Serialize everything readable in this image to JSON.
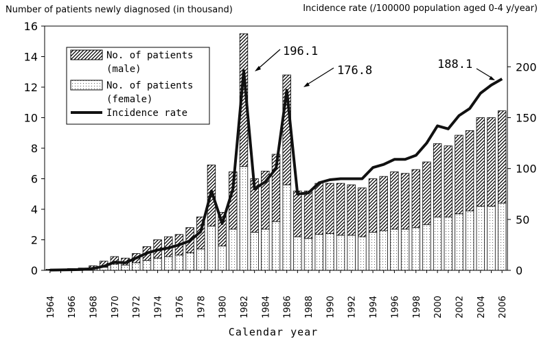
{
  "chart_data": {
    "type": "bar",
    "stacked": true,
    "title_left": "Number of patients newly diagnosed (in thousand)",
    "title_right": "Incidence rate (/100000 population aged 0-4 y/year)",
    "xlabel": "Calendar year",
    "x": [
      1964,
      1965,
      1966,
      1967,
      1968,
      1969,
      1970,
      1971,
      1972,
      1973,
      1974,
      1975,
      1976,
      1977,
      1978,
      1979,
      1980,
      1981,
      1982,
      1983,
      1984,
      1985,
      1986,
      1987,
      1988,
      1989,
      1990,
      1991,
      1992,
      1993,
      1994,
      1995,
      1996,
      1997,
      1998,
      1999,
      2000,
      2001,
      2002,
      2003,
      2004,
      2005,
      2006
    ],
    "xtick_labels": [
      "1964",
      "1966",
      "1968",
      "1970",
      "1972",
      "1974",
      "1976",
      "1978",
      "1980",
      "1982",
      "1984",
      "1986",
      "1988",
      "1990",
      "1992",
      "1994",
      "1996",
      "1998",
      "2000",
      "2002",
      "2004",
      "2006"
    ],
    "y_left_ticks": [
      "0",
      "2",
      "4",
      "6",
      "8",
      "10",
      "12",
      "14",
      "16"
    ],
    "ylim_left": [
      0,
      16
    ],
    "y_right_ticks": [
      "0",
      "50",
      "100",
      "150",
      "200"
    ],
    "ylim_right": [
      0,
      240
    ],
    "series": [
      {
        "name": "No. of patients (female)",
        "axis": "left",
        "pattern": "dots",
        "values": [
          0.02,
          0.03,
          0.04,
          0.05,
          0.1,
          0.2,
          0.4,
          0.35,
          0.5,
          0.65,
          0.8,
          0.9,
          1.0,
          1.15,
          1.4,
          2.9,
          1.6,
          2.7,
          6.8,
          2.5,
          2.7,
          3.2,
          5.6,
          2.2,
          2.1,
          2.35,
          2.4,
          2.3,
          2.3,
          2.2,
          2.5,
          2.6,
          2.7,
          2.7,
          2.8,
          3.0,
          3.5,
          3.5,
          3.7,
          3.9,
          4.2,
          4.2,
          4.4
        ]
      },
      {
        "name": "No. of patients (male)",
        "axis": "left",
        "pattern": "hatch",
        "values": [
          0.05,
          0.06,
          0.08,
          0.1,
          0.2,
          0.4,
          0.5,
          0.45,
          0.6,
          0.9,
          1.2,
          1.3,
          1.35,
          1.65,
          2.1,
          4.0,
          2.2,
          3.75,
          8.7,
          3.5,
          3.8,
          4.4,
          7.2,
          3.0,
          3.1,
          3.35,
          3.3,
          3.4,
          3.3,
          3.2,
          3.5,
          3.55,
          3.75,
          3.65,
          3.8,
          4.1,
          4.8,
          4.65,
          5.15,
          5.25,
          5.8,
          5.8,
          6.05
        ]
      },
      {
        "name": "Incidence rate",
        "axis": "right",
        "type": "line",
        "values": [
          0.3,
          0.4,
          0.6,
          0.8,
          1.8,
          4.0,
          8.0,
          7.5,
          12.0,
          17.0,
          20.0,
          22.0,
          25.0,
          29.0,
          38.0,
          78.0,
          46.0,
          80.0,
          196.1,
          80.0,
          87.0,
          100.0,
          176.8,
          75.0,
          76.0,
          86.0,
          89.0,
          90.0,
          90.0,
          90.0,
          101.0,
          104.0,
          109.0,
          109.0,
          113.0,
          125.0,
          142.0,
          139.0,
          152.0,
          159.0,
          174.0,
          182.0,
          188.1
        ]
      }
    ],
    "legend": {
      "position": "top-left",
      "items": [
        "No. of patients",
        "(male)",
        "No. of patients",
        "(female)",
        "Incidence rate"
      ]
    },
    "annotations": [
      "196.1",
      "176.8",
      "188.1"
    ]
  }
}
